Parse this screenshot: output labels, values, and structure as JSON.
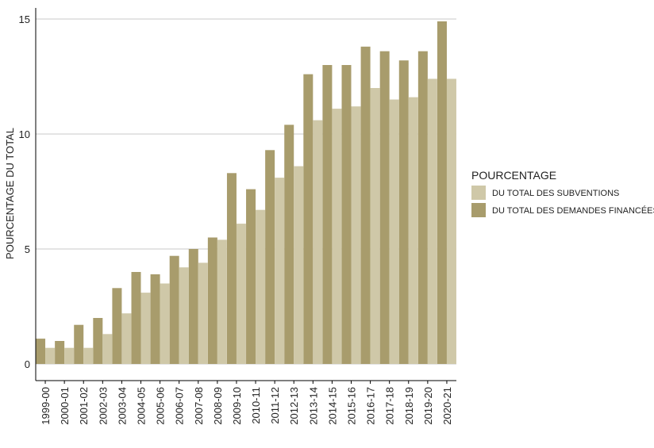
{
  "chart_data": {
    "type": "bar",
    "title": "",
    "xlabel": "",
    "ylabel": "POURCENTAGE DU TOTAL",
    "ylim": [
      0,
      15
    ],
    "yticks": [
      "0",
      "5",
      "10",
      "15"
    ],
    "grid": "horizontal",
    "legend_position": "right",
    "legend_title": "POURCENTAGE",
    "categories": [
      "1999-00",
      "2000-01",
      "2001-02",
      "2002-03",
      "2003-04",
      "2004-05",
      "2005-06",
      "2006-07",
      "2007-08",
      "2008-09",
      "2009-10",
      "2010-11",
      "2011-12",
      "2012-13",
      "2013-14",
      "2014-15",
      "2015-16",
      "2016-17",
      "2017-18",
      "2018-19",
      "2019-20",
      "2020-21"
    ],
    "series": [
      {
        "name": "DU TOTAL DES DEMANDES FINANCÉES",
        "color": "#a89c6c",
        "values": [
          1.1,
          1.0,
          1.7,
          2.0,
          3.3,
          4.0,
          3.9,
          4.7,
          5.0,
          5.5,
          8.3,
          7.6,
          9.3,
          10.4,
          12.6,
          13.0,
          13.0,
          13.8,
          13.6,
          13.2,
          13.6,
          14.9
        ]
      },
      {
        "name": "DU TOTAL DES SUBVENTIONS",
        "color": "#cfc8a8",
        "values": [
          0.7,
          0.7,
          0.7,
          1.3,
          2.2,
          3.1,
          3.5,
          4.2,
          4.4,
          5.4,
          6.1,
          6.7,
          8.1,
          8.6,
          10.6,
          11.1,
          11.2,
          12.0,
          11.5,
          11.6,
          12.4,
          12.4
        ]
      }
    ],
    "legend_order": [
      1,
      0
    ]
  }
}
